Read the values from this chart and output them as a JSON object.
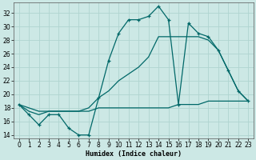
{
  "background_color": "#cce8e5",
  "grid_color": "#b0d4d0",
  "line_color": "#006868",
  "xlabel": "Humidex (Indice chaleur)",
  "xlim": [
    -0.5,
    23.5
  ],
  "ylim": [
    13.5,
    33.5
  ],
  "xticks": [
    0,
    1,
    2,
    3,
    4,
    5,
    6,
    7,
    8,
    9,
    10,
    11,
    12,
    13,
    14,
    15,
    16,
    17,
    18,
    19,
    20,
    21,
    22,
    23
  ],
  "yticks": [
    14,
    16,
    18,
    20,
    22,
    24,
    26,
    28,
    30,
    32
  ],
  "main_x": [
    0,
    1,
    2,
    3,
    4,
    5,
    6,
    7,
    8,
    9,
    10,
    11,
    12,
    13,
    14,
    15,
    16,
    17,
    18,
    19,
    20,
    21,
    22,
    23
  ],
  "main_y": [
    18.5,
    17.0,
    15.5,
    17.0,
    17.0,
    15.0,
    14.0,
    14.0,
    19.5,
    25.0,
    29.0,
    31.0,
    31.0,
    31.5,
    33.0,
    31.0,
    18.5,
    30.5,
    29.0,
    28.5,
    26.5,
    23.5,
    20.5,
    19.0
  ],
  "flat_x": [
    0,
    1,
    2,
    3,
    4,
    5,
    6,
    7,
    8,
    9,
    10,
    11,
    12,
    13,
    14,
    15,
    16,
    17,
    18,
    19,
    20,
    21,
    22,
    23
  ],
  "flat_y": [
    18.5,
    18.0,
    17.5,
    17.5,
    17.5,
    17.5,
    17.5,
    17.5,
    18.0,
    18.0,
    18.0,
    18.0,
    18.0,
    18.0,
    18.0,
    18.0,
    18.5,
    18.5,
    18.5,
    19.0,
    19.0,
    19.0,
    19.0,
    19.0
  ],
  "diag_x": [
    0,
    1,
    2,
    3,
    4,
    5,
    6,
    7,
    8,
    9,
    10,
    11,
    12,
    13,
    14,
    15,
    16,
    17,
    18,
    19,
    20,
    21,
    22,
    23
  ],
  "diag_y": [
    18.5,
    17.5,
    17.0,
    17.5,
    17.5,
    17.5,
    17.5,
    18.0,
    19.5,
    20.5,
    22.0,
    23.0,
    24.0,
    25.5,
    28.5,
    28.5,
    28.5,
    28.5,
    28.5,
    28.0,
    26.5,
    23.5,
    20.5,
    19.0
  ]
}
